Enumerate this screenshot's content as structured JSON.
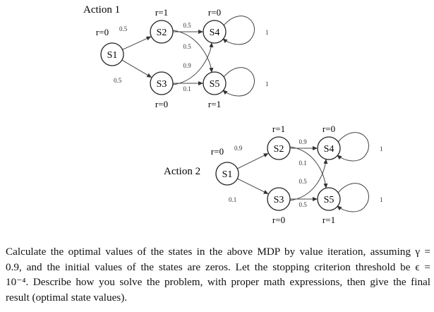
{
  "diagrams": [
    {
      "title": "Action 1",
      "rewards": {
        "S1": "r=0",
        "S2": "r=1",
        "S3": "r=0",
        "S4": "r=0",
        "S5": "r=1"
      },
      "transitions": [
        {
          "from": "S1",
          "to": "S2",
          "p": "0.5"
        },
        {
          "from": "S1",
          "to": "S3",
          "p": "0.5"
        },
        {
          "from": "S2",
          "to": "S4",
          "p": "0.5"
        },
        {
          "from": "S2",
          "to": "S5",
          "p": "0.5"
        },
        {
          "from": "S3",
          "to": "S4",
          "p": "0.9"
        },
        {
          "from": "S3",
          "to": "S5",
          "p": "0.1"
        },
        {
          "from": "S4",
          "to": "S4",
          "p": "1"
        },
        {
          "from": "S5",
          "to": "S5",
          "p": "1"
        }
      ]
    },
    {
      "title": "Action 2",
      "rewards": {
        "S1": "r=0",
        "S2": "r=1",
        "S3": "r=0",
        "S4": "r=0",
        "S5": "r=1"
      },
      "transitions": [
        {
          "from": "S1",
          "to": "S2",
          "p": "0.9"
        },
        {
          "from": "S1",
          "to": "S3",
          "p": "0.1"
        },
        {
          "from": "S2",
          "to": "S4",
          "p": "0.9"
        },
        {
          "from": "S2",
          "to": "S5",
          "p": "0.1"
        },
        {
          "from": "S3",
          "to": "S4",
          "p": "0.5"
        },
        {
          "from": "S3",
          "to": "S5",
          "p": "0.5"
        },
        {
          "from": "S4",
          "to": "S4",
          "p": "1"
        },
        {
          "from": "S5",
          "to": "S5",
          "p": "1"
        }
      ]
    }
  ],
  "question": {
    "lines": [
      "Calculate the optimal values of the states in the above MDP by value iteration, assuming γ =",
      "0.9, and the initial values of the states are zeros. Let the stopping criterion threshold be ϵ =",
      "10⁻⁴. Describe how you solve the problem, with proper math expressions, then give the final",
      "result (optimal state values)."
    ]
  }
}
